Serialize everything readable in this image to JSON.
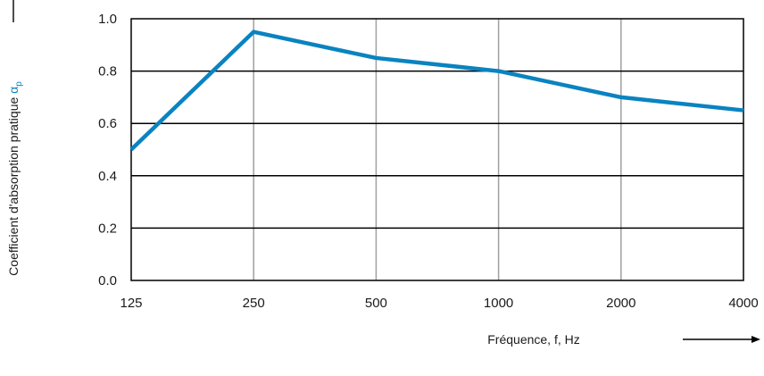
{
  "chart_data": {
    "type": "line",
    "categories": [
      "125",
      "250",
      "500",
      "1000",
      "2000",
      "4000"
    ],
    "series": [
      {
        "values": [
          0.5,
          0.95,
          0.85,
          0.8,
          0.7,
          0.65
        ],
        "color": "#0a83c0"
      }
    ],
    "ylim": [
      0,
      1.0
    ],
    "y_ticks": [
      "0.0",
      "0.2",
      "0.4",
      "0.6",
      "0.8",
      "1.0"
    ],
    "xlabel": "Fréquence, f, Hz",
    "ylabel": {
      "text": "Coefficient d'absorption pratique ",
      "symbol": "α",
      "subscript": "p",
      "symbol_color": "#0a83c0"
    },
    "grid": {
      "horizontal_color": "#000000",
      "vertical_color": "#a0a0a0"
    }
  }
}
